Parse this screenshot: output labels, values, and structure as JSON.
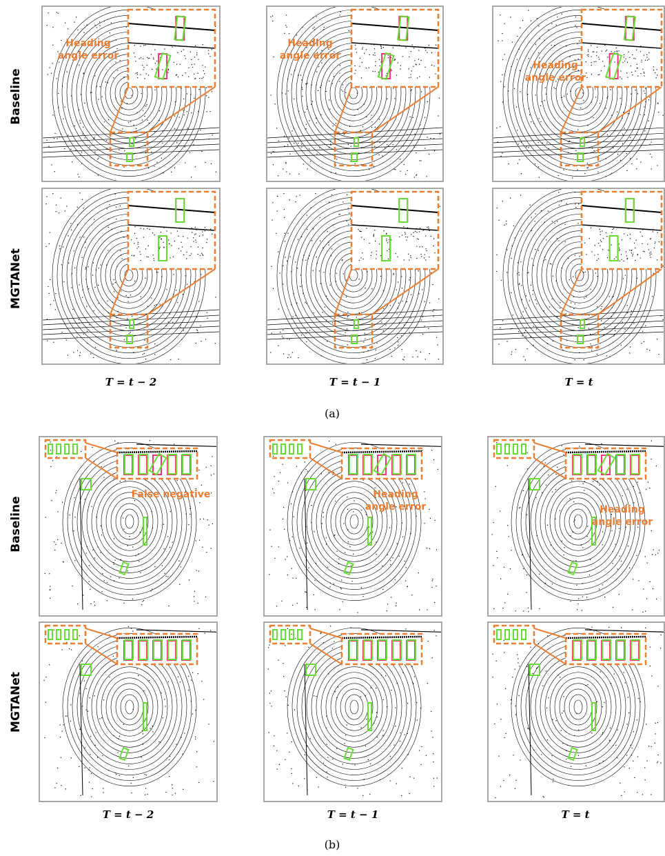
{
  "figure_a": {
    "label": "(a)",
    "row_labels": [
      "Baseline",
      "MGTANet"
    ],
    "col_labels": [
      "T = t − 2",
      "T = t − 1",
      "T = t"
    ],
    "annotations": [
      {
        "panel": "baseline-t-2",
        "text": "Heading\nangle error"
      },
      {
        "panel": "baseline-t-1",
        "text": "Heading\nangle error"
      },
      {
        "panel": "baseline-t",
        "text": "Heading\nangle error"
      }
    ]
  },
  "figure_b": {
    "label": "(b)",
    "row_labels": [
      "Baseline",
      "MGTANet"
    ],
    "col_labels": [
      "T = t − 2",
      "T = t − 1",
      "T = t"
    ],
    "annotations": [
      {
        "panel": "baseline-t-2",
        "text": "False negative"
      },
      {
        "panel": "baseline-t-1",
        "text": "Heading\nangle error"
      },
      {
        "panel": "baseline-t",
        "text": "Heading\nangle error"
      }
    ]
  },
  "colors": {
    "prediction_box": "#66dd33",
    "ground_truth_box": "#ee3377",
    "zoom_outline": "#ed7d31",
    "panel_border": "#a6a6a6"
  }
}
